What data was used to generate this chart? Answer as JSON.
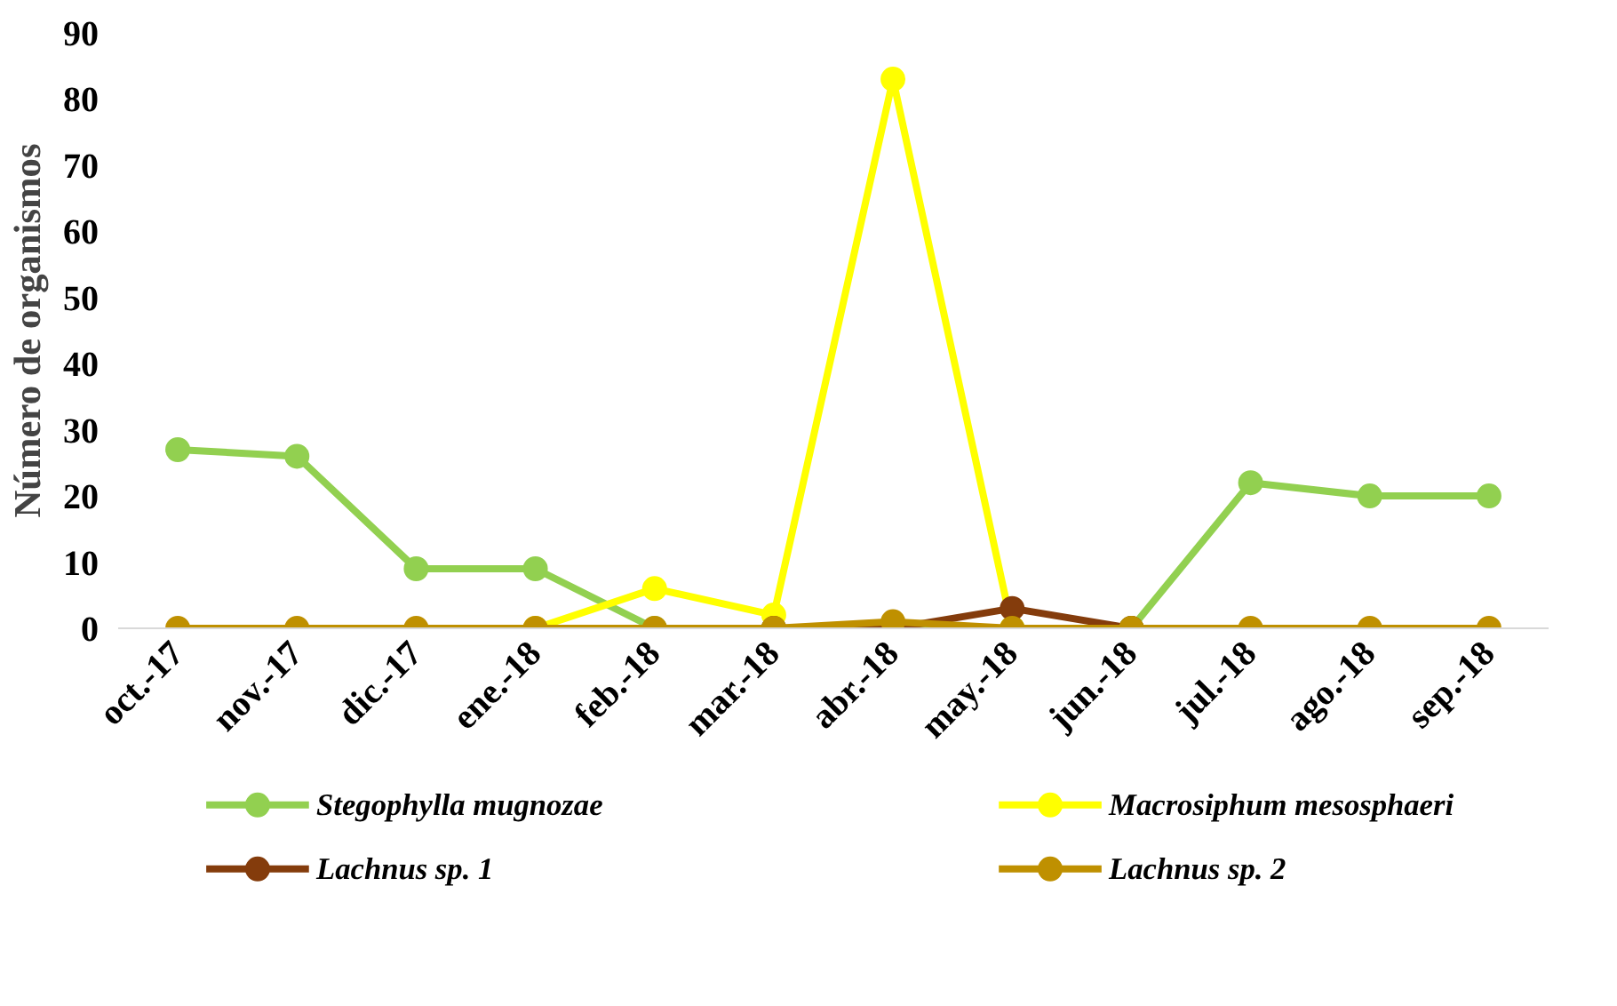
{
  "chart_data": {
    "type": "line",
    "ylabel": "Número de organismos",
    "categories": [
      "oct.-17",
      "nov.-17",
      "dic.-17",
      "ene.-18",
      "feb.-18",
      "mar.-18",
      "abr.-18",
      "may.-18",
      "jun.-18",
      "jul.-18",
      "ago.-18",
      "sep.-18"
    ],
    "series": [
      {
        "name": "Stegophylla mugnozae",
        "color": "#92d050",
        "values": [
          27,
          26,
          9,
          9,
          0,
          0,
          0,
          0,
          0,
          22,
          20,
          20
        ]
      },
      {
        "name": "Macrosiphum mesosphaeri",
        "color": "#ffff00",
        "values": [
          null,
          null,
          null,
          0,
          6,
          2,
          83,
          0,
          null,
          null,
          null,
          null
        ]
      },
      {
        "name": "Lachnus sp. 1",
        "color": "#843c0c",
        "values": [
          null,
          null,
          null,
          null,
          null,
          0,
          0,
          3,
          0,
          null,
          null,
          null
        ]
      },
      {
        "name": "Lachnus sp. 2",
        "color": "#bf9000",
        "values": [
          0,
          0,
          0,
          0,
          0,
          0,
          1,
          0,
          0,
          0,
          0,
          0
        ]
      }
    ],
    "ylim": [
      0,
      90
    ],
    "yticks": [
      0,
      10,
      20,
      30,
      40,
      50,
      60,
      70,
      80,
      90
    ],
    "grid": false,
    "legend": "bottom",
    "marker": "circle",
    "line_style": "solid"
  }
}
